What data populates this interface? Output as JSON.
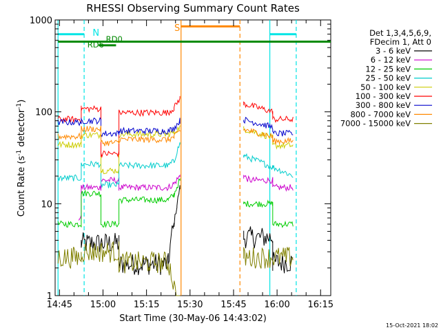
{
  "chart_data": {
    "type": "line",
    "title": "RHESSI Observing Summary Count Rates",
    "xlabel": "Start Time (30-May-06 14:43:02)",
    "ylabel": "Count Rate (s⁻¹ detector⁻¹)",
    "ylabel_main": "Count Rate (s",
    "ylabel_sup1": "-1",
    "ylabel_mid": " detector",
    "ylabel_sup2": "-1",
    "ylabel_end": ")",
    "yscale": "log",
    "ylim": [
      1,
      1000
    ],
    "xlim_minutes": [
      -1.5,
      93.5
    ],
    "x_tick_minutes": [
      0,
      15,
      30,
      45,
      60,
      75,
      90
    ],
    "x_tick_labels": [
      "14:45",
      "15:00",
      "15:15",
      "15:30",
      "15:45",
      "16:00",
      "16:15"
    ],
    "y_ticks": [
      1,
      10,
      100,
      1000
    ],
    "y_tick_labels": [
      "1",
      "10",
      "100",
      "1000"
    ],
    "legend_header": [
      "Det 1,3,4,5,6,9,",
      "FDecim 1, Att 0"
    ],
    "series": [
      {
        "name": "3 - 6 keV",
        "color": "#000000",
        "values": [
          [
            -0.5,
            0
          ],
          [
            7.5,
            0
          ],
          [
            7.5,
            3.7
          ],
          [
            20.5,
            3.7
          ],
          [
            20.5,
            2.2
          ],
          [
            37.5,
            2.2
          ],
          [
            39.5,
            6
          ],
          [
            40.5,
            9.5
          ],
          [
            41.5,
            15
          ],
          [
            41.9,
            0
          ],
          [
            63.5,
            0
          ],
          [
            63.5,
            4.3
          ],
          [
            73.5,
            4.3
          ],
          [
            73.5,
            2.3
          ],
          [
            80.5,
            2.3
          ]
        ]
      },
      {
        "name": "6 - 12 keV",
        "color": "#cc00cc",
        "values": [
          [
            -0.5,
            0
          ],
          [
            6.8,
            0
          ],
          [
            6.8,
            7
          ],
          [
            7.5,
            7
          ],
          [
            7.5,
            15
          ],
          [
            14.3,
            15
          ],
          [
            14.3,
            18
          ],
          [
            20.5,
            18
          ],
          [
            20.5,
            15
          ],
          [
            37.5,
            15
          ],
          [
            39.5,
            16.5
          ],
          [
            41.5,
            20
          ],
          [
            41.9,
            0
          ],
          [
            63.5,
            0
          ],
          [
            63.5,
            20
          ],
          [
            65.5,
            18
          ],
          [
            73.5,
            18
          ],
          [
            73.5,
            15
          ],
          [
            80.5,
            15
          ]
        ]
      },
      {
        "name": "12 - 25 keV",
        "color": "#00cc00",
        "values": [
          [
            -0.5,
            6
          ],
          [
            7.5,
            6
          ],
          [
            7.5,
            13
          ],
          [
            14.3,
            13
          ],
          [
            14.3,
            6
          ],
          [
            20.5,
            6
          ],
          [
            20.5,
            11
          ],
          [
            37.5,
            11
          ],
          [
            39.5,
            12.5
          ],
          [
            41.5,
            18
          ],
          [
            41.9,
            0
          ],
          [
            63.5,
            0
          ],
          [
            63.5,
            10
          ],
          [
            73.5,
            10
          ],
          [
            73.5,
            6
          ],
          [
            80.5,
            6
          ]
        ]
      },
      {
        "name": "25 - 50 keV",
        "color": "#00cccc",
        "values": [
          [
            -0.5,
            19
          ],
          [
            7.5,
            19
          ],
          [
            7.5,
            27
          ],
          [
            14.3,
            27
          ],
          [
            14.3,
            16
          ],
          [
            20.5,
            16
          ],
          [
            20.5,
            26
          ],
          [
            37.5,
            26
          ],
          [
            39.5,
            29
          ],
          [
            41.5,
            45
          ],
          [
            41.9,
            0
          ],
          [
            63.5,
            0
          ],
          [
            63.5,
            33
          ],
          [
            73.5,
            25
          ],
          [
            80.5,
            20
          ]
        ]
      },
      {
        "name": "50 - 100 keV",
        "color": "#cccc00",
        "values": [
          [
            -0.5,
            44
          ],
          [
            7.5,
            44
          ],
          [
            7.5,
            56
          ],
          [
            14.3,
            56
          ],
          [
            14.3,
            23
          ],
          [
            20.5,
            23
          ],
          [
            20.5,
            57
          ],
          [
            37.5,
            57
          ],
          [
            39.5,
            60
          ],
          [
            41.5,
            68
          ],
          [
            41.9,
            0
          ],
          [
            63.5,
            0
          ],
          [
            63.5,
            65
          ],
          [
            73.5,
            52
          ],
          [
            73.5,
            43
          ],
          [
            80.5,
            43
          ]
        ]
      },
      {
        "name": "100 - 300 keV",
        "color": "#ff0000",
        "values": [
          [
            -0.5,
            83
          ],
          [
            7.5,
            83
          ],
          [
            7.5,
            108
          ],
          [
            14.3,
            108
          ],
          [
            14.3,
            35
          ],
          [
            20.5,
            35
          ],
          [
            20.5,
            98
          ],
          [
            37.5,
            98
          ],
          [
            39.5,
            110
          ],
          [
            41.5,
            140
          ],
          [
            41.9,
            0
          ],
          [
            63.5,
            0
          ],
          [
            63.5,
            122
          ],
          [
            73.5,
            100
          ],
          [
            73.5,
            83
          ],
          [
            80.5,
            83
          ]
        ]
      },
      {
        "name": "300 - 800 keV",
        "color": "#0000cc",
        "values": [
          [
            -0.5,
            77
          ],
          [
            7.5,
            77
          ],
          [
            7.5,
            80
          ],
          [
            14.3,
            80
          ],
          [
            14.3,
            58
          ],
          [
            20.5,
            58
          ],
          [
            20.5,
            62
          ],
          [
            37.5,
            62
          ],
          [
            39.5,
            66
          ],
          [
            41.5,
            80
          ],
          [
            41.9,
            0
          ],
          [
            63.5,
            0
          ],
          [
            63.5,
            82
          ],
          [
            73.5,
            68
          ],
          [
            73.5,
            58
          ],
          [
            80.5,
            58
          ]
        ]
      },
      {
        "name": "800 - 7000 keV",
        "color": "#ff8800",
        "values": [
          [
            -0.5,
            54
          ],
          [
            7.5,
            54
          ],
          [
            7.5,
            65
          ],
          [
            14.3,
            65
          ],
          [
            14.3,
            46
          ],
          [
            20.5,
            46
          ],
          [
            20.5,
            50
          ],
          [
            37.5,
            50
          ],
          [
            39.5,
            53
          ],
          [
            41.5,
            62
          ],
          [
            41.9,
            0
          ],
          [
            63.5,
            0
          ],
          [
            63.5,
            64
          ],
          [
            73.5,
            54
          ],
          [
            73.5,
            48
          ],
          [
            80.5,
            48
          ]
        ]
      },
      {
        "name": "7000 - 15000 keV",
        "color": "#808000",
        "values": [
          [
            -0.5,
            2.6
          ],
          [
            7.5,
            2.6
          ],
          [
            7.5,
            3
          ],
          [
            20.5,
            3
          ],
          [
            20.5,
            2.3
          ],
          [
            37.5,
            2.3
          ],
          [
            41.9,
            0
          ],
          [
            63.5,
            0
          ],
          [
            63.5,
            2.6
          ],
          [
            80.5,
            2.6
          ]
        ]
      }
    ],
    "annotations": [
      {
        "label": "N",
        "color": "#00e5e5",
        "type": "attenuator_state"
      },
      {
        "label": "S",
        "color": "#ff8800",
        "type": "saa"
      },
      {
        "label": "RD6",
        "color": "#008800"
      },
      {
        "label": "RD0",
        "color": "#008800"
      }
    ],
    "vertical_lines": [
      {
        "t": -0.5,
        "color": "#00e5e5",
        "style": "solid"
      },
      {
        "t": 8.5,
        "color": "#00e5e5",
        "style": "dashed"
      },
      {
        "t": 41.9,
        "color": "#ff8800",
        "style": "solid"
      },
      {
        "t": 62.2,
        "color": "#ff8800",
        "style": "dashed"
      },
      {
        "t": 72.5,
        "color": "#00e5e5",
        "style": "solid"
      },
      {
        "t": 81.6,
        "color": "#00e5e5",
        "style": "dashed"
      }
    ],
    "bars": [
      {
        "color": "#00e5e5",
        "y": 700,
        "from": -0.5,
        "to": 8.5
      },
      {
        "color": "#00e5e5",
        "y": 700,
        "from": 72.5,
        "to": 81.6
      },
      {
        "color": "#ff8800",
        "y": 850,
        "from": 41.9,
        "to": 62.2
      },
      {
        "color": "#008800",
        "y": 580,
        "from": -0.5,
        "to": 93.5
      },
      {
        "color": "#008800",
        "y": 530,
        "from": 13.5,
        "to": 19.5
      }
    ],
    "label_N_t": 11.4,
    "label_S_t": 39.6,
    "label_RD6_t": 9.6,
    "label_RD0_t": 16.0,
    "timestamp": "15-Oct-2021 18:02"
  }
}
